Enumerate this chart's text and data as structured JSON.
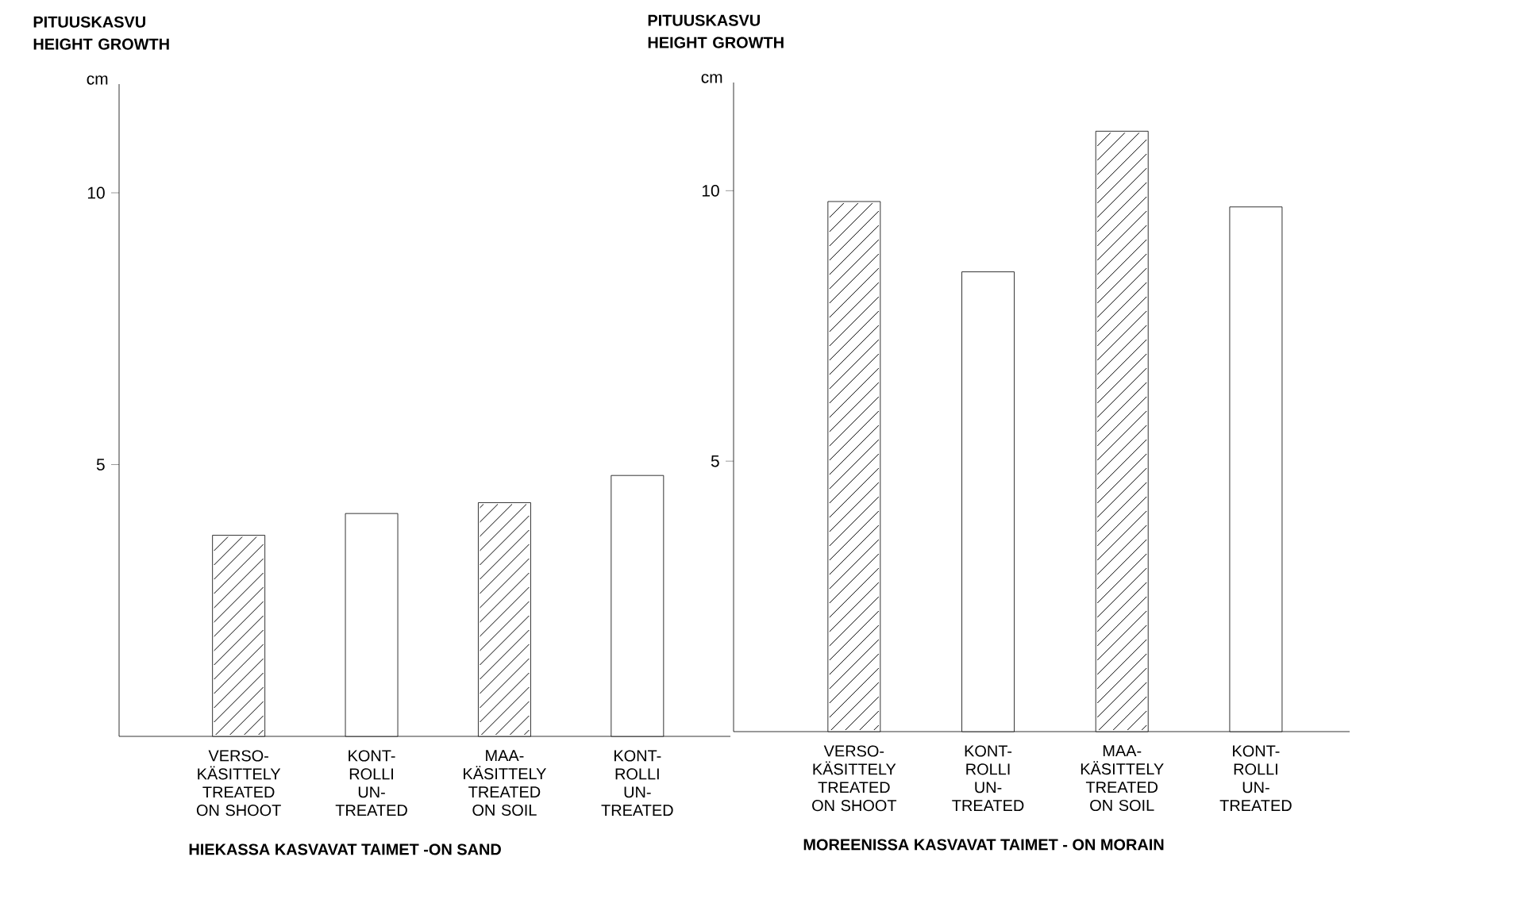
{
  "chart_data": [
    {
      "type": "bar",
      "title": "PITUUSKASVU\nHEIGHT GROWTH",
      "ylabel": "cm",
      "xlabel": "HIEKASSA KASVAVAT TAIMET -ON SAND",
      "categories": [
        "VERSO-\nKÄSITTELY\nTREATED\nON SHOOT",
        "KONT-\nROLLI\nUN-\nTREATED",
        "MAA-\nKÄSITTELY\nTREATED\nON SOIL",
        "KONT-\nROLLI\nUN-\nTREATED"
      ],
      "series": [
        {
          "color": "#000000",
          "values": [
            3.7,
            null,
            4.3,
            null
          ]
        },
        {
          "color": "#000000",
          "values": [
            null,
            4.1,
            null,
            4.8
          ]
        }
      ],
      "ylim": [
        0,
        12
      ],
      "yticks": [
        5,
        10
      ]
    },
    {
      "type": "bar",
      "title": "PITUUSKASVU\nHEIGHT GROWTH",
      "ylabel": "cm",
      "xlabel": "MOREENISSA KASVAVAT TAIMET - ON MORAIN",
      "categories": [
        "VERSO-\nKÄSITTELY\nTREATED\nON SHOOT",
        "KONT-\nROLLI\nUN-\nTREATED",
        "MAA-\nKÄSITTELY\nTREATED\nON SOIL",
        "KONT-\nROLLI\nUN-\nTREATED"
      ],
      "series": [
        {
          "color": "#000000",
          "values": [
            9.8,
            null,
            11.1,
            null
          ]
        },
        {
          "color": "#000000",
          "values": [
            null,
            8.5,
            null,
            9.7
          ]
        }
      ],
      "ylim": [
        0,
        12
      ],
      "yticks": [
        5,
        10
      ]
    }
  ]
}
